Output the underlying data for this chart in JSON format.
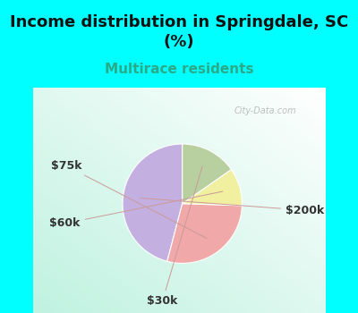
{
  "title": "Income distribution in Springdale, SC\n(%)",
  "subtitle": "Multirace residents",
  "title_color": "#111111",
  "subtitle_color": "#2aaa88",
  "bg_color": "#00ffff",
  "chart_bg_color": "#e0f0e8",
  "watermark": "City-Data.com",
  "labels": [
    "$200k",
    "$75k",
    "$60k",
    "$30k"
  ],
  "values": [
    45,
    28,
    10,
    15
  ],
  "colors": [
    "#c4b0e0",
    "#f0a8a8",
    "#f0f0a0",
    "#b8d0a0"
  ],
  "startangle": 90,
  "figsize": [
    4.0,
    3.5
  ],
  "dpi": 100,
  "title_fontsize": 13,
  "subtitle_fontsize": 11,
  "label_fontsize": 9
}
